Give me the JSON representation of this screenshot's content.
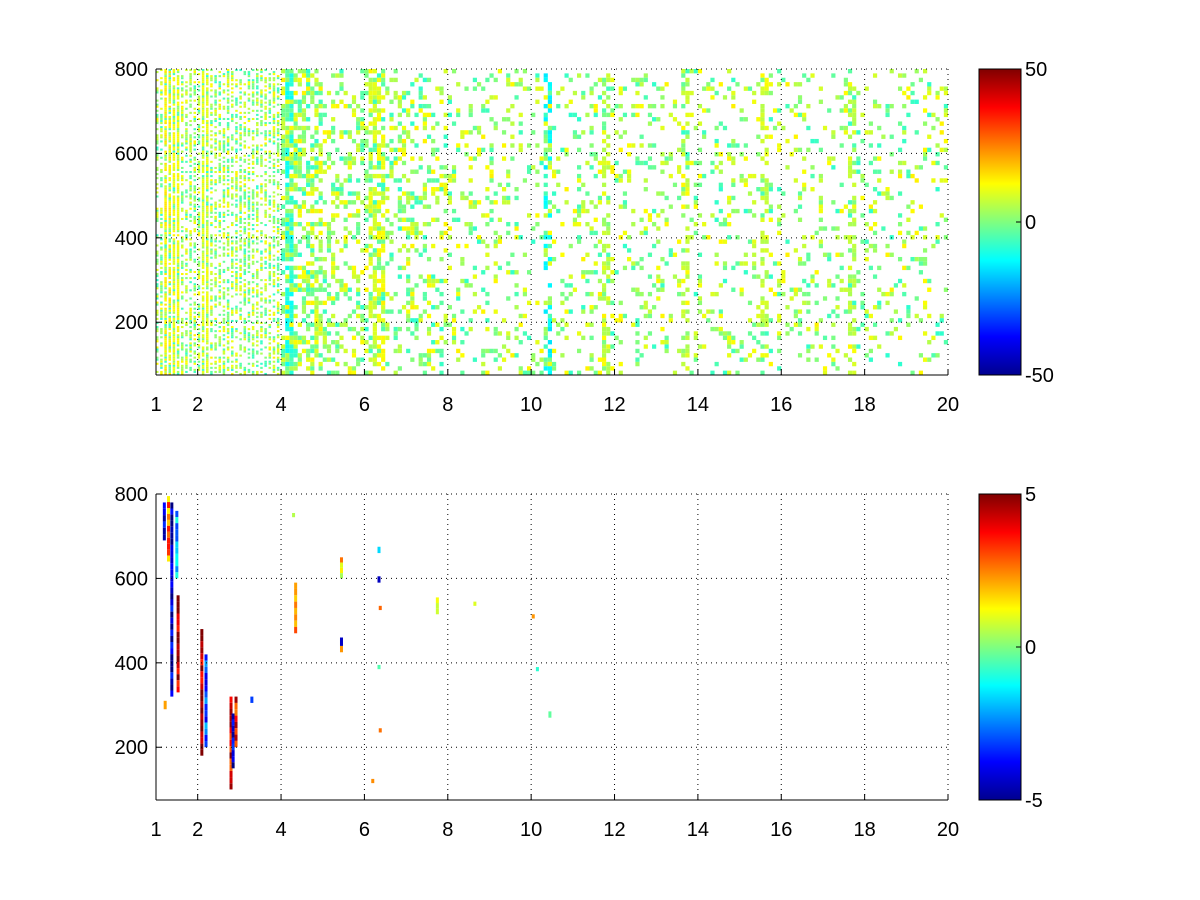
{
  "chart_data": [
    {
      "type": "heatmap",
      "title": "",
      "xlabel": "",
      "ylabel": "",
      "xlim": [
        1,
        20
      ],
      "ylim": [
        75,
        800
      ],
      "x_ticks": [
        1,
        2,
        4,
        6,
        8,
        10,
        12,
        14,
        16,
        18,
        20
      ],
      "y_ticks": [
        200,
        400,
        600,
        800
      ],
      "grid": true,
      "grid_style": "dotted",
      "colormap": "jet",
      "clim": [
        -50,
        50
      ],
      "colorbar_ticks": [
        -50,
        0,
        50
      ],
      "colorbar_tick_labels": [
        "-50",
        "0",
        "50"
      ],
      "description_of_values": "sparse scattered cells with values mostly between -15 and 20; dense near x=1 to 5, sparser toward x=20; vertical streaks near x=1.4, 2.2, 4.2, 6.3, 10.4, 11.8, 13.7, 15.6, 17.7",
      "streaks": [
        {
          "x": 1.3,
          "value": 14
        },
        {
          "x": 1.5,
          "value": 12
        },
        {
          "x": 2.2,
          "value": 10
        },
        {
          "x": 4.2,
          "value": -10
        },
        {
          "x": 6.2,
          "value": 9
        },
        {
          "x": 6.4,
          "value": 12
        },
        {
          "x": 10.4,
          "value": -13
        },
        {
          "x": 11.8,
          "value": 6
        },
        {
          "x": 13.7,
          "value": 6
        },
        {
          "x": 15.6,
          "value": 7
        },
        {
          "x": 17.7,
          "value": 6
        }
      ]
    },
    {
      "type": "heatmap",
      "title": "",
      "xlabel": "",
      "ylabel": "",
      "xlim": [
        1,
        20
      ],
      "ylim": [
        75,
        800
      ],
      "x_ticks": [
        1,
        2,
        4,
        6,
        8,
        10,
        12,
        14,
        16,
        18,
        20
      ],
      "y_ticks": [
        200,
        400,
        600,
        800
      ],
      "grid": true,
      "grid_style": "dotted",
      "colormap": "jet",
      "clim": [
        -5,
        5
      ],
      "colorbar_ticks": [
        -5,
        0,
        5
      ],
      "colorbar_tick_labels": [
        "-5",
        "0",
        "5"
      ],
      "cells": [
        {
          "x": 1.2,
          "y0": 690,
          "y1": 780,
          "value": -3.5
        },
        {
          "x": 1.3,
          "y0": 640,
          "y1": 795,
          "value": 2.5
        },
        {
          "x": 1.38,
          "y0": 320,
          "y1": 780,
          "value": -4.5
        },
        {
          "x": 1.5,
          "y0": 600,
          "y1": 760,
          "value": -2
        },
        {
          "x": 1.53,
          "y0": 330,
          "y1": 560,
          "value": 4.5
        },
        {
          "x": 1.22,
          "y0": 290,
          "y1": 310,
          "value": 3
        },
        {
          "x": 2.1,
          "y0": 180,
          "y1": 480,
          "value": 4.5
        },
        {
          "x": 2.2,
          "y0": 200,
          "y1": 420,
          "value": -3
        },
        {
          "x": 2.8,
          "y0": 100,
          "y1": 320,
          "value": 4
        },
        {
          "x": 2.85,
          "y0": 150,
          "y1": 280,
          "value": -4
        },
        {
          "x": 2.92,
          "y0": 200,
          "y1": 320,
          "value": 3.5
        },
        {
          "x": 3.3,
          "y0": 305,
          "y1": 320,
          "value": -3
        },
        {
          "x": 4.35,
          "y0": 470,
          "y1": 590,
          "value": 2
        },
        {
          "x": 4.3,
          "y0": 745,
          "y1": 755,
          "value": 1
        },
        {
          "x": 5.45,
          "y0": 600,
          "y1": 650,
          "value": 1.5
        },
        {
          "x": 5.45,
          "y0": 440,
          "y1": 460,
          "value": -5
        },
        {
          "x": 5.45,
          "y0": 425,
          "y1": 440,
          "value": 3.5
        },
        {
          "x": 6.35,
          "y0": 590,
          "y1": 605,
          "value": -5
        },
        {
          "x": 6.35,
          "y0": 660,
          "y1": 675,
          "value": -1.5
        },
        {
          "x": 6.38,
          "y0": 525,
          "y1": 535,
          "value": 2.5
        },
        {
          "x": 6.35,
          "y0": 385,
          "y1": 395,
          "value": -1
        },
        {
          "x": 6.38,
          "y0": 235,
          "y1": 245,
          "value": 2
        },
        {
          "x": 6.2,
          "y0": 115,
          "y1": 125,
          "value": 1.5
        },
        {
          "x": 7.75,
          "y0": 515,
          "y1": 555,
          "value": 0.8
        },
        {
          "x": 8.65,
          "y0": 535,
          "y1": 545,
          "value": 0.8
        },
        {
          "x": 10.05,
          "y0": 505,
          "y1": 515,
          "value": 1.5
        },
        {
          "x": 10.15,
          "y0": 380,
          "y1": 390,
          "value": -0.5
        },
        {
          "x": 10.45,
          "y0": 270,
          "y1": 285,
          "value": -0.8
        }
      ]
    }
  ],
  "colors": {
    "axes": "#000000",
    "grid": "#000000",
    "background": "#ffffff"
  }
}
